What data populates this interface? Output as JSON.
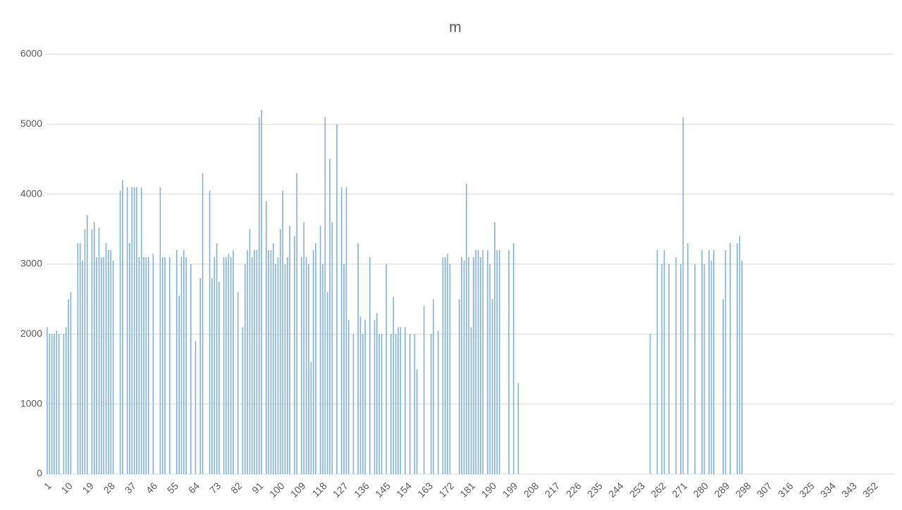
{
  "chart_data": {
    "type": "bar",
    "title": "m",
    "categories": [
      "1",
      null,
      null,
      null,
      null,
      null,
      null,
      null,
      null,
      "10",
      null,
      null,
      null,
      null,
      null,
      null,
      null,
      null,
      "19",
      null,
      null,
      null,
      null,
      null,
      null,
      null,
      null,
      "28",
      null,
      null,
      null,
      null,
      null,
      null,
      null,
      null,
      "37",
      null,
      null,
      null,
      null,
      null,
      null,
      null,
      null,
      "46",
      null,
      null,
      null,
      null,
      null,
      null,
      null,
      null,
      "55",
      null,
      null,
      null,
      null,
      null,
      null,
      null,
      null,
      "64",
      null,
      null,
      null,
      null,
      null,
      null,
      null,
      null,
      "73",
      null,
      null,
      null,
      null,
      null,
      null,
      null,
      null,
      "82",
      null,
      null,
      null,
      null,
      null,
      null,
      null,
      null,
      "91",
      null,
      null,
      null,
      null,
      null,
      null,
      null,
      null,
      "100",
      null,
      null,
      null,
      null,
      null,
      null,
      null,
      null,
      "109",
      null,
      null,
      null,
      null,
      null,
      null,
      null,
      null,
      "118",
      null,
      null,
      null,
      null,
      null,
      null,
      null,
      null,
      "127",
      null,
      null,
      null,
      null,
      null,
      null,
      null,
      null,
      "136",
      null,
      null,
      null,
      null,
      null,
      null,
      null,
      null,
      "145",
      null,
      null,
      null,
      null,
      null,
      null,
      null,
      null,
      "154",
      null,
      null,
      null,
      null,
      null,
      null,
      null,
      null,
      "163",
      null,
      null,
      null,
      null,
      null,
      null,
      null,
      null,
      "172",
      null,
      null,
      null,
      null,
      null,
      null,
      null,
      null,
      "181",
      null,
      null,
      null,
      null,
      null,
      null,
      null,
      null,
      "190",
      null,
      null,
      null,
      null,
      null,
      null,
      null,
      null,
      "199",
      null,
      null,
      null,
      null,
      null,
      null,
      null,
      null,
      "208",
      null,
      null,
      null,
      null,
      null,
      null,
      null,
      null,
      "217",
      null,
      null,
      null,
      null,
      null,
      null,
      null,
      null,
      "226",
      null,
      null,
      null,
      null,
      null,
      null,
      null,
      null,
      "235",
      null,
      null,
      null,
      null,
      null,
      null,
      null,
      null,
      "244",
      null,
      null,
      null,
      null,
      null,
      null,
      null,
      null,
      "253",
      null,
      null,
      null,
      null,
      null,
      null,
      null,
      null,
      "262",
      null,
      null,
      null,
      null,
      null,
      null,
      null,
      null,
      "271",
      null,
      null,
      null,
      null,
      null,
      null,
      null,
      null,
      "280",
      null,
      null,
      null,
      null,
      null,
      null,
      null,
      null,
      "289",
      null,
      null,
      null,
      null,
      null,
      null,
      null,
      null,
      "298",
      null,
      null,
      null,
      null,
      null,
      null,
      null,
      null,
      "307",
      null,
      null,
      null,
      null,
      null,
      null,
      null,
      null,
      "316",
      null,
      null,
      null,
      null,
      null,
      null,
      null,
      null,
      "325",
      null,
      null,
      null,
      null,
      null,
      null,
      null,
      null,
      "334",
      null,
      null,
      null,
      null,
      null,
      null,
      null,
      null,
      "343",
      null,
      null,
      null,
      null,
      null,
      null,
      null,
      null,
      "352",
      null,
      null,
      null,
      null,
      null,
      null,
      null,
      null
    ],
    "values": [
      2100,
      2000,
      2000,
      2000,
      2050,
      2000,
      null,
      2000,
      2100,
      2500,
      2600,
      null,
      null,
      3300,
      3300,
      3050,
      3500,
      3700,
      null,
      3500,
      3600,
      3100,
      3520,
      3100,
      3100,
      3300,
      3200,
      3200,
      3050,
      null,
      null,
      4050,
      4200,
      null,
      4100,
      3300,
      4100,
      4100,
      4100,
      3100,
      4100,
      3100,
      3100,
      3100,
      null,
      3150,
      null,
      null,
      4100,
      3100,
      3100,
      null,
      3100,
      null,
      null,
      3200,
      2550,
      3100,
      3200,
      3100,
      null,
      3000,
      null,
      1900,
      null,
      2800,
      4300,
      null,
      null,
      4050,
      2800,
      3100,
      3300,
      2750,
      null,
      3100,
      3100,
      3150,
      3100,
      3200,
      null,
      2600,
      null,
      2100,
      3000,
      3200,
      3500,
      3100,
      3200,
      3200,
      5100,
      5200,
      null,
      3900,
      3200,
      3200,
      3300,
      3000,
      3100,
      3500,
      4050,
      3000,
      3100,
      3550,
      null,
      3400,
      4300,
      null,
      3100,
      3600,
      3100,
      3000,
      1600,
      3200,
      3300,
      null,
      3550,
      3000,
      5100,
      2600,
      4500,
      3600,
      null,
      5000,
      null,
      4100,
      3000,
      4100,
      2200,
      null,
      2000,
      null,
      3300,
      2250,
      2000,
      2200,
      null,
      3100,
      null,
      2200,
      2300,
      2000,
      2000,
      null,
      3000,
      null,
      2000,
      2530,
      2000,
      2100,
      2100,
      null,
      2100,
      null,
      2000,
      null,
      2000,
      1500,
      null,
      null,
      2400,
      null,
      null,
      2000,
      2500,
      null,
      2050,
      null,
      3100,
      3100,
      3150,
      3000,
      null,
      null,
      null,
      2500,
      3100,
      3050,
      4150,
      3100,
      2100,
      3100,
      3200,
      3200,
      3100,
      3200,
      null,
      3200,
      3000,
      2500,
      3600,
      3200,
      3200,
      null,
      null,
      null,
      3200,
      null,
      3300,
      null,
      1300,
      null,
      null,
      null,
      null,
      null,
      null,
      null,
      null,
      null,
      null,
      null,
      null,
      null,
      null,
      null,
      null,
      null,
      null,
      null,
      null,
      null,
      null,
      null,
      null,
      null,
      null,
      null,
      null,
      null,
      null,
      null,
      null,
      null,
      null,
      null,
      null,
      null,
      null,
      null,
      null,
      null,
      null,
      null,
      null,
      null,
      null,
      null,
      null,
      null,
      null,
      null,
      null,
      null,
      null,
      null,
      2000,
      null,
      null,
      3200,
      null,
      3000,
      3200,
      null,
      3000,
      null,
      null,
      3100,
      null,
      3000,
      5100,
      null,
      3300,
      null,
      null,
      3000,
      null,
      null,
      3200,
      3000,
      null,
      3200,
      3050,
      3200,
      null,
      null,
      null,
      2500,
      3200,
      null,
      3300,
      null,
      null,
      3300,
      3400,
      3050,
      null,
      null,
      null,
      null,
      null,
      null,
      null,
      null,
      null,
      null,
      null,
      null,
      null,
      null,
      null,
      null,
      null,
      null,
      null,
      null,
      null,
      null,
      null,
      null,
      null,
      null,
      null,
      null,
      null,
      null,
      null,
      null,
      null,
      null,
      null,
      null,
      null,
      null,
      null,
      null,
      null,
      null,
      null,
      null,
      null,
      null,
      null,
      null,
      null,
      null,
      null,
      null,
      null,
      null,
      null,
      null,
      null,
      null,
      null,
      null,
      null,
      null,
      null,
      null
    ],
    "color": "#7fb2dd",
    "ylim": [
      0,
      6000
    ],
    "yticks": [
      0,
      1000,
      2000,
      3000,
      4000,
      5000,
      6000
    ],
    "grid": true
  }
}
